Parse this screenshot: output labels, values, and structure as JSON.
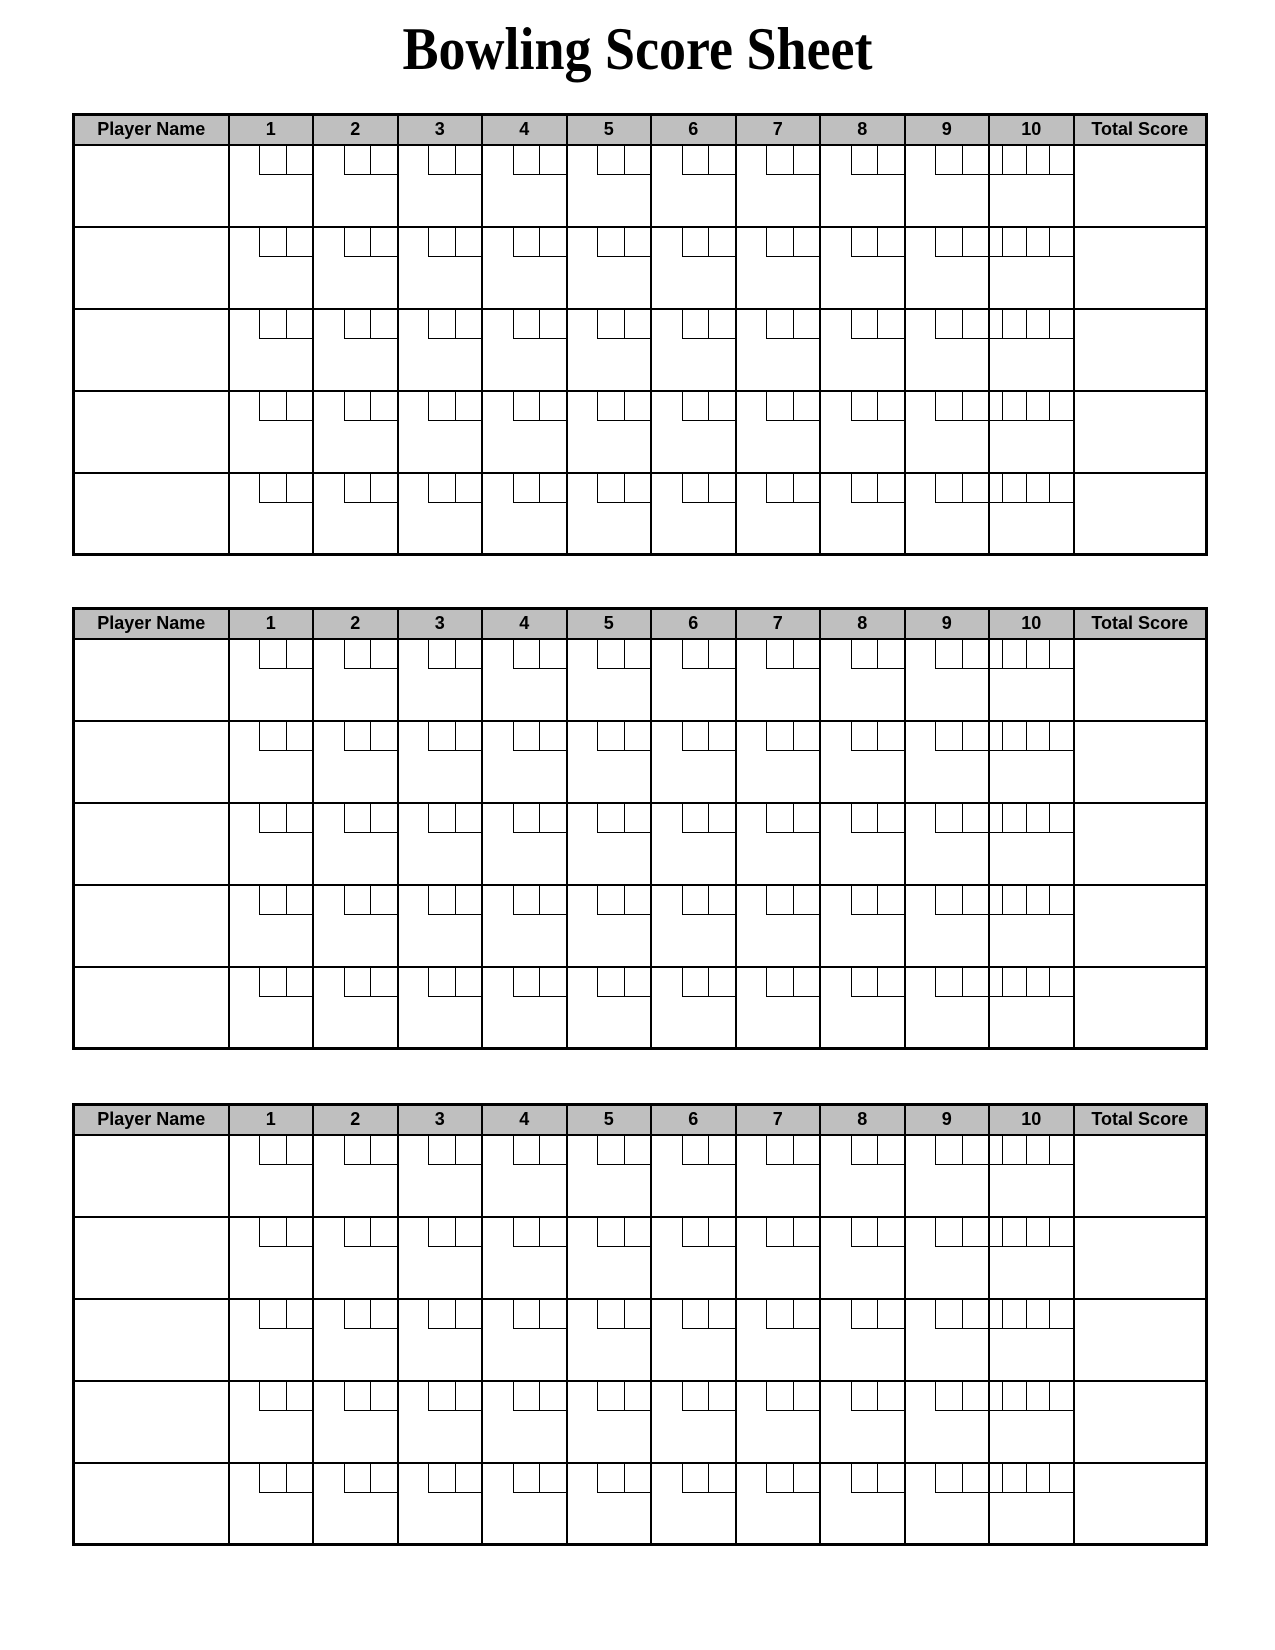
{
  "page": {
    "title": "Bowling Score Sheet"
  },
  "colors": {
    "page_bg": "#ffffff",
    "header_bg": "#bfbfbf",
    "border": "#000000",
    "text": "#000000"
  },
  "score_table": {
    "header": {
      "player_name_label": "Player Name",
      "frame_labels": [
        "1",
        "2",
        "3",
        "4",
        "5",
        "6",
        "7",
        "8",
        "9",
        "10"
      ],
      "total_score_label": "Total Score"
    },
    "rows_per_table": 5,
    "regular_frame_throw_boxes": 2,
    "tenth_frame_throw_boxes": 3,
    "blank_cells": {
      "player_name_value": "",
      "throw_value": "",
      "frame_score_value": "",
      "total_score_value": ""
    }
  },
  "score_tables": [
    {
      "name": "score-table-game-1"
    },
    {
      "name": "score-table-game-2"
    },
    {
      "name": "score-table-game-3"
    }
  ]
}
